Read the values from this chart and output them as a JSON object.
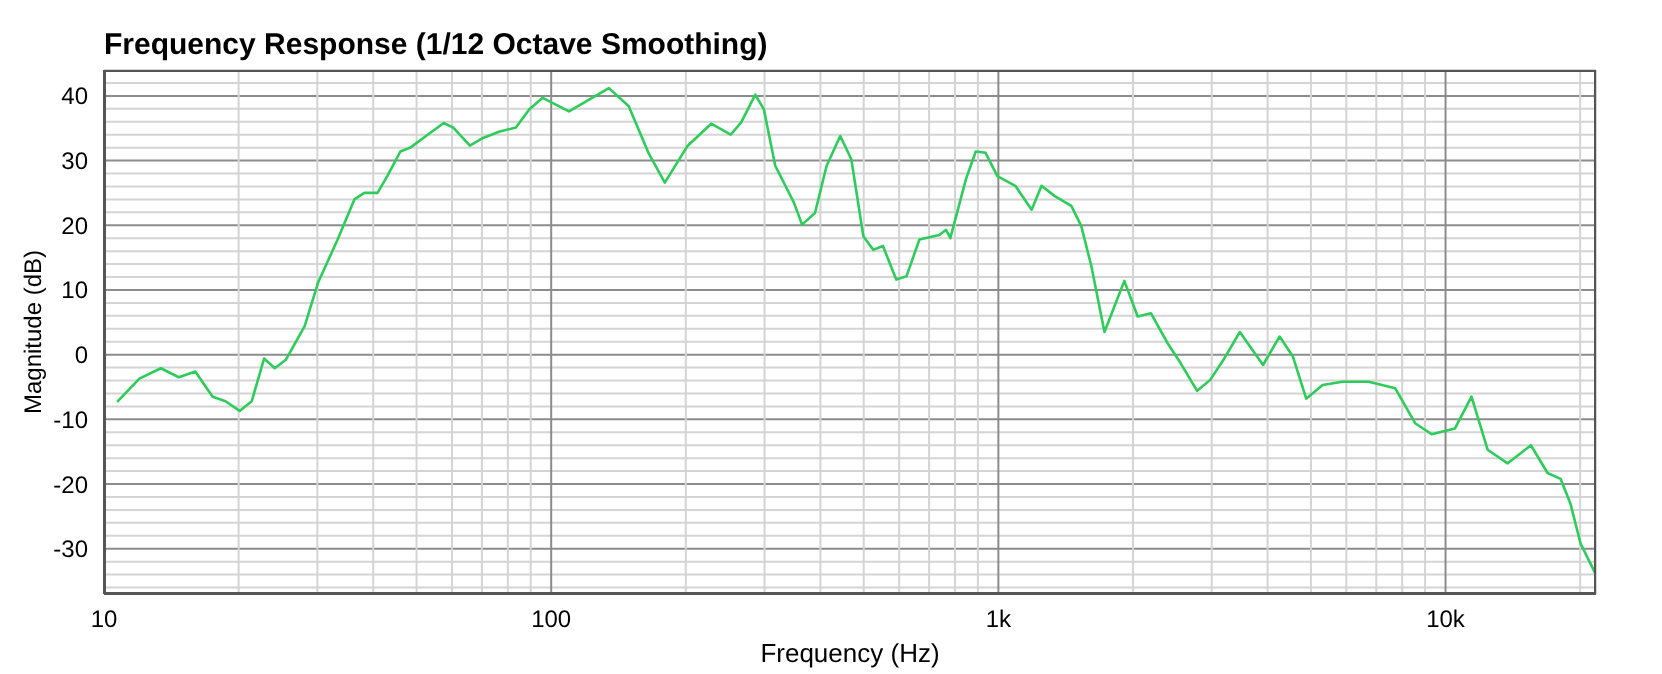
{
  "chart_data": {
    "type": "line",
    "title": "Frequency Response (1/12 Octave Smoothing)",
    "xlabel": "Frequency (Hz)",
    "ylabel": "Magnitude (dB)",
    "log": "x",
    "grid": true,
    "marker": "none",
    "line_style": "solid",
    "xlim": [
      10,
      21700
    ],
    "xticks": [
      10,
      {
        "value": 20,
        "label": null
      },
      {
        "value": 30,
        "label": null
      },
      {
        "value": 40,
        "label": null
      },
      {
        "value": 50,
        "label": null
      },
      {
        "value": 60,
        "label": null
      },
      {
        "value": 70,
        "label": null
      },
      {
        "value": 80,
        "label": null
      },
      {
        "value": 90,
        "label": null
      },
      100,
      {
        "value": 200,
        "label": null
      },
      {
        "value": 300,
        "label": null
      },
      {
        "value": 400,
        "label": null
      },
      {
        "value": 500,
        "label": null
      },
      {
        "value": 600,
        "label": null
      },
      {
        "value": 700,
        "label": null
      },
      {
        "value": 800,
        "label": null
      },
      {
        "value": 900,
        "label": null
      },
      {
        "value": 1000,
        "label": "1k"
      },
      {
        "value": 2000,
        "label": null
      },
      {
        "value": 3000,
        "label": null
      },
      {
        "value": 4000,
        "label": null
      },
      {
        "value": 5000,
        "label": null
      },
      {
        "value": 6000,
        "label": null
      },
      {
        "value": 7000,
        "label": null
      },
      {
        "value": 8000,
        "label": null
      },
      {
        "value": 9000,
        "label": null
      },
      {
        "value": 10000,
        "label": "10k"
      },
      {
        "value": 20000,
        "label": null
      }
    ],
    "ylim": [
      -37,
      44
    ],
    "yticks": [
      {
        "value": -36,
        "label": null
      },
      {
        "value": -34,
        "label": null
      },
      {
        "value": -32,
        "label": null
      },
      -30,
      {
        "value": -28,
        "label": null
      },
      {
        "value": -26,
        "label": null
      },
      {
        "value": -24,
        "label": null
      },
      {
        "value": -22,
        "label": null
      },
      -20,
      {
        "value": -18,
        "label": null
      },
      {
        "value": -16,
        "label": null
      },
      {
        "value": -14,
        "label": null
      },
      {
        "value": -12,
        "label": null
      },
      -10,
      {
        "value": -8,
        "label": null
      },
      {
        "value": -6,
        "label": null
      },
      {
        "value": -4,
        "label": null
      },
      {
        "value": -2,
        "label": null
      },
      0,
      {
        "value": 2,
        "label": null
      },
      {
        "value": 4,
        "label": null
      },
      {
        "value": 6,
        "label": null
      },
      {
        "value": 8,
        "label": null
      },
      10,
      {
        "value": 12,
        "label": null
      },
      {
        "value": 14,
        "label": null
      },
      {
        "value": 16,
        "label": null
      },
      {
        "value": 18,
        "label": null
      },
      20,
      {
        "value": 22,
        "label": null
      },
      {
        "value": 24,
        "label": null
      },
      {
        "value": 26,
        "label": null
      },
      {
        "value": 28,
        "label": null
      },
      30,
      {
        "value": 32,
        "label": null
      },
      {
        "value": 34,
        "label": null
      },
      {
        "value": 36,
        "label": null
      },
      {
        "value": 38,
        "label": null
      },
      40,
      {
        "value": 42,
        "label": null
      }
    ],
    "x": [
      10.7,
      12.0,
      13.4,
      14.7,
      16.0,
      17.5,
      18.7,
      20.1,
      21.4,
      22.8,
      24.1,
      25.5,
      28.1,
      30.1,
      33.3,
      36.3,
      38.2,
      40.9,
      43.0,
      46.0,
      48.4,
      53.7,
      57.5,
      60.4,
      65.8,
      70.4,
      76.7,
      83.4,
      89.3,
      95.7,
      109.6,
      134.6,
      149.1,
      165,
      179.5,
      202,
      228,
      252,
      266,
      286,
      299,
      317,
      349,
      364,
      389,
      413,
      443,
      469,
      499,
      525,
      552,
      591,
      623,
      666,
      738,
      764,
      781,
      846,
      890,
      936,
      995,
      1091,
      1187,
      1249,
      1337,
      1456,
      1532,
      1614,
      1727,
      1913,
      2049,
      2193,
      2389,
      2555,
      2783,
      2977,
      3187,
      3467,
      3907,
      4255,
      4557,
      4880,
      5310,
      5880,
      6730,
      7720,
      8550,
      9310,
      10500,
      11430,
      12420,
      13770,
      15520,
      16910,
      18080,
      19020,
      20040,
      21690
    ],
    "series": [
      {
        "color": "#2ecc5a",
        "values": [
          -7.3,
          -3.7,
          -2.1,
          -3.5,
          -2.6,
          -6.5,
          -7.2,
          -8.7,
          -7.2,
          -0.6,
          -2.1,
          -0.8,
          4.4,
          11.1,
          17.8,
          24.0,
          25.0,
          25.0,
          27.6,
          31.4,
          32.0,
          34.3,
          35.8,
          35.1,
          32.3,
          33.5,
          34.5,
          35.1,
          37.9,
          39.7,
          37.6,
          41.2,
          38.4,
          31.2,
          26.6,
          32.3,
          35.7,
          34.0,
          35.9,
          40.2,
          37.9,
          29.2,
          23.5,
          20.1,
          21.9,
          29.2,
          33.8,
          30.2,
          18.3,
          16.2,
          16.8,
          11.6,
          12.1,
          17.8,
          18.5,
          19.3,
          18.0,
          27.1,
          31.4,
          31.2,
          27.6,
          26.1,
          22.4,
          26.1,
          24.5,
          23.0,
          19.9,
          13.7,
          3.5,
          11.4,
          5.9,
          6.4,
          1.8,
          -1.3,
          -5.6,
          -3.9,
          -0.8,
          3.5,
          -1.6,
          2.8,
          -0.3,
          -6.8,
          -4.7,
          -4.2,
          -4.2,
          -5.2,
          -10.6,
          -12.3,
          -11.4,
          -6.5,
          -14.7,
          -16.8,
          -14.0,
          -18.3,
          -19.2,
          -23.0,
          -29.2,
          -34.0
        ]
      }
    ]
  }
}
